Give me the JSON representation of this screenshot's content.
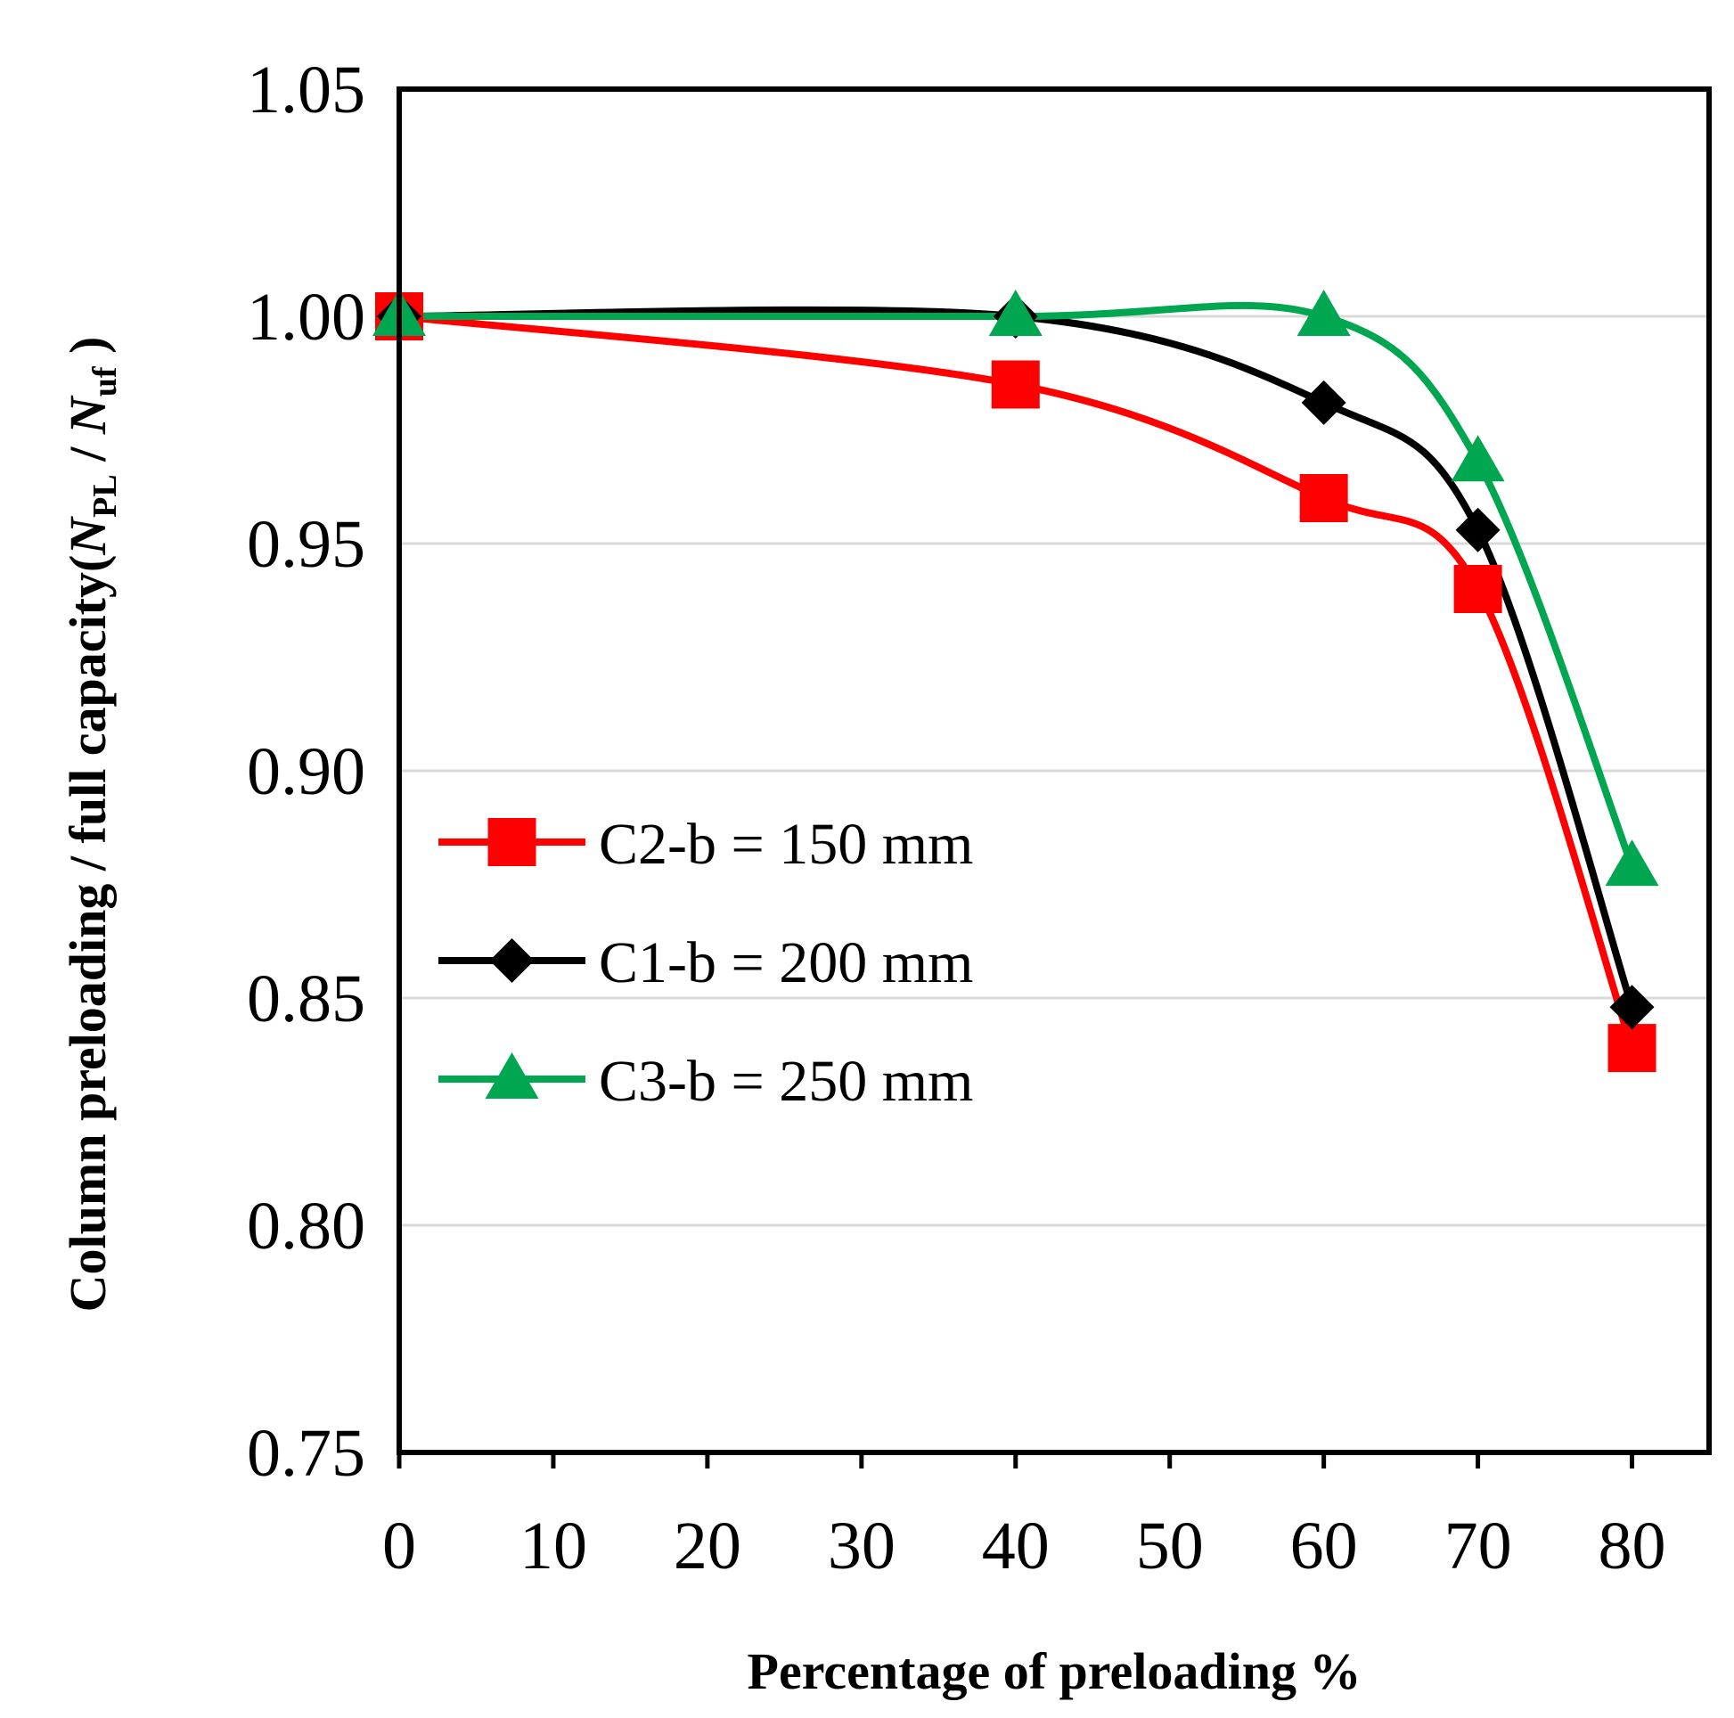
{
  "chart_data": {
    "type": "line",
    "title": "",
    "xlabel": "Percentage of preloading %",
    "ylabel": {
      "text": "Column preloading / full capacity(",
      "num_italic": "N",
      "num_sub": "PL",
      "slash": " / ",
      "den_italic": "N",
      "den_sub": "uf",
      "close": " )"
    },
    "xlim": [
      0,
      85
    ],
    "ylim": [
      0.75,
      1.05
    ],
    "xticks": [
      "0",
      "10",
      "20",
      "30",
      "40",
      "50",
      "60",
      "70",
      "80"
    ],
    "yticks": [
      "0.75",
      "0.80",
      "0.85",
      "0.90",
      "0.95",
      "1.00",
      "1.05"
    ],
    "grid": "horizontal",
    "legend_position": "center-left",
    "series": [
      {
        "name": "C2-b = 150 mm",
        "color": "#ff0000",
        "marker": "square",
        "x": [
          0,
          40,
          60,
          70,
          80
        ],
        "y": [
          1.0,
          0.985,
          0.96,
          0.94,
          0.839
        ]
      },
      {
        "name": "C1-b = 200 mm",
        "color": "#000000",
        "marker": "diamond",
        "x": [
          0,
          40,
          60,
          70,
          80
        ],
        "y": [
          1.0,
          1.0,
          0.981,
          0.953,
          0.848
        ]
      },
      {
        "name": "C3-b = 250 mm",
        "color": "#00a650",
        "marker": "triangle",
        "x": [
          0,
          40,
          60,
          70,
          80
        ],
        "y": [
          1.0,
          1.0,
          1.0,
          0.968,
          0.879
        ]
      }
    ]
  }
}
